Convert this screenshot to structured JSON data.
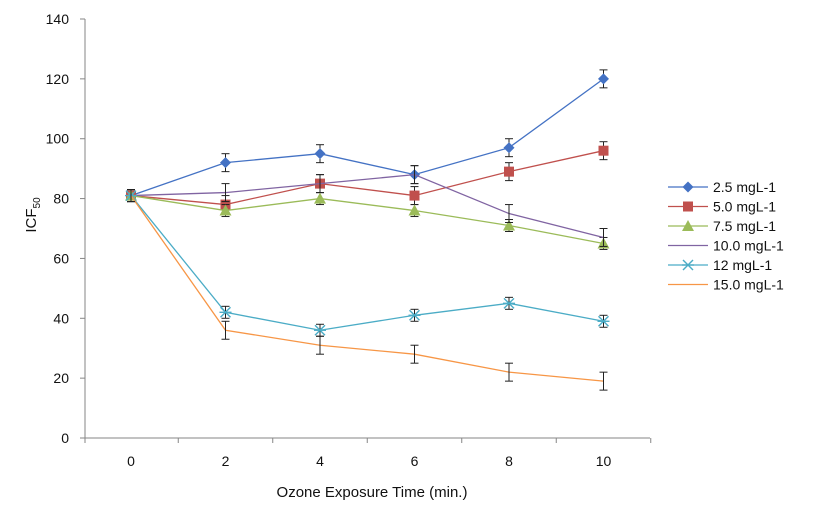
{
  "chart_data": {
    "type": "line",
    "title": "",
    "xlabel": "Ozone  Exposure Time (min.)",
    "ylabel": "ICF",
    "ylabel_sub": "50",
    "x": [
      0,
      2,
      4,
      6,
      8,
      10
    ],
    "x_ticks": [
      "0",
      "2",
      "4",
      "6",
      "8",
      "10"
    ],
    "y_ticks": [
      "0",
      "20",
      "40",
      "60",
      "80",
      "100",
      "120",
      "140"
    ],
    "ylim": [
      0,
      140
    ],
    "grid": false,
    "legend_position": "right",
    "series": [
      {
        "name": "2.5 mgL-1",
        "color": "#4472c4",
        "marker": "diamond",
        "values": [
          81,
          92,
          95,
          88,
          97,
          120
        ],
        "errors": [
          2,
          3,
          3,
          3,
          3,
          3
        ]
      },
      {
        "name": "5.0 mgL-1",
        "color": "#c0504d",
        "marker": "square",
        "values": [
          81,
          78,
          85,
          81,
          89,
          96
        ],
        "errors": [
          2,
          3,
          3,
          3,
          3,
          3
        ]
      },
      {
        "name": "7.5 mgL-1",
        "color": "#9bbb59",
        "marker": "triangle",
        "values": [
          81,
          76,
          80,
          76,
          71,
          65
        ],
        "errors": [
          2,
          2,
          2,
          2,
          2,
          2
        ]
      },
      {
        "name": "10.0 mgL-1",
        "color": "#8064a2",
        "marker": "none",
        "values": [
          81,
          82,
          85,
          88,
          75,
          67
        ],
        "errors": [
          2,
          3,
          3,
          3,
          3,
          3
        ]
      },
      {
        "name": "12 mgL-1",
        "color": "#4bacc6",
        "marker": "star",
        "values": [
          81,
          42,
          36,
          41,
          45,
          39
        ],
        "errors": [
          2,
          2,
          2,
          2,
          2,
          2
        ]
      },
      {
        "name": "15.0 mgL-1",
        "color": "#f79646",
        "marker": "none",
        "values": [
          81,
          36,
          31,
          28,
          22,
          19
        ],
        "errors": [
          2,
          3,
          3,
          3,
          3,
          3
        ]
      }
    ]
  }
}
